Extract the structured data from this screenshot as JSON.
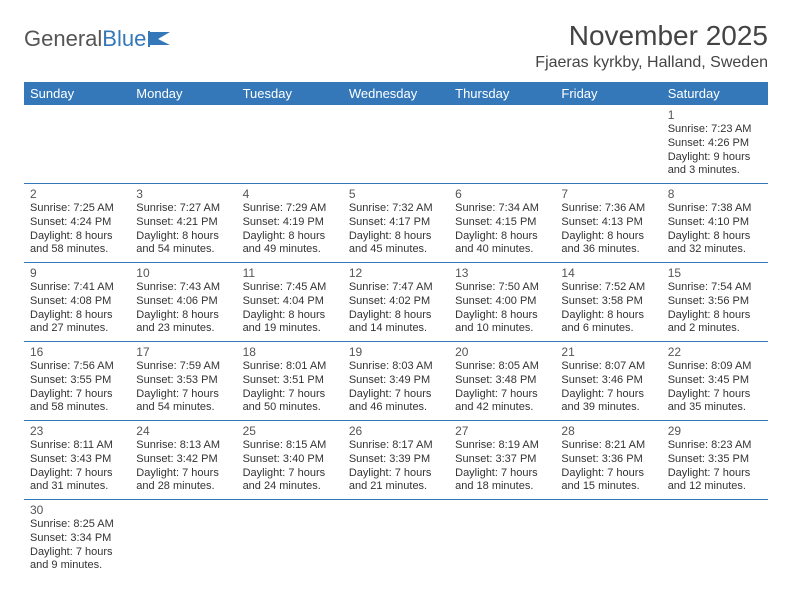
{
  "logo": {
    "text1": "General",
    "text2": "Blue"
  },
  "title": "November 2025",
  "location": "Fjaeras kyrkby, Halland, Sweden",
  "colors": {
    "header_bg": "#3478b9",
    "header_text": "#ffffff",
    "border": "#3478b9",
    "text": "#333333"
  },
  "weekdays": [
    "Sunday",
    "Monday",
    "Tuesday",
    "Wednesday",
    "Thursday",
    "Friday",
    "Saturday"
  ],
  "weeks": [
    [
      null,
      null,
      null,
      null,
      null,
      null,
      {
        "n": "1",
        "sunrise": "Sunrise: 7:23 AM",
        "sunset": "Sunset: 4:26 PM",
        "daylight": "Daylight: 9 hours and 3 minutes."
      }
    ],
    [
      {
        "n": "2",
        "sunrise": "Sunrise: 7:25 AM",
        "sunset": "Sunset: 4:24 PM",
        "daylight": "Daylight: 8 hours and 58 minutes."
      },
      {
        "n": "3",
        "sunrise": "Sunrise: 7:27 AM",
        "sunset": "Sunset: 4:21 PM",
        "daylight": "Daylight: 8 hours and 54 minutes."
      },
      {
        "n": "4",
        "sunrise": "Sunrise: 7:29 AM",
        "sunset": "Sunset: 4:19 PM",
        "daylight": "Daylight: 8 hours and 49 minutes."
      },
      {
        "n": "5",
        "sunrise": "Sunrise: 7:32 AM",
        "sunset": "Sunset: 4:17 PM",
        "daylight": "Daylight: 8 hours and 45 minutes."
      },
      {
        "n": "6",
        "sunrise": "Sunrise: 7:34 AM",
        "sunset": "Sunset: 4:15 PM",
        "daylight": "Daylight: 8 hours and 40 minutes."
      },
      {
        "n": "7",
        "sunrise": "Sunrise: 7:36 AM",
        "sunset": "Sunset: 4:13 PM",
        "daylight": "Daylight: 8 hours and 36 minutes."
      },
      {
        "n": "8",
        "sunrise": "Sunrise: 7:38 AM",
        "sunset": "Sunset: 4:10 PM",
        "daylight": "Daylight: 8 hours and 32 minutes."
      }
    ],
    [
      {
        "n": "9",
        "sunrise": "Sunrise: 7:41 AM",
        "sunset": "Sunset: 4:08 PM",
        "daylight": "Daylight: 8 hours and 27 minutes."
      },
      {
        "n": "10",
        "sunrise": "Sunrise: 7:43 AM",
        "sunset": "Sunset: 4:06 PM",
        "daylight": "Daylight: 8 hours and 23 minutes."
      },
      {
        "n": "11",
        "sunrise": "Sunrise: 7:45 AM",
        "sunset": "Sunset: 4:04 PM",
        "daylight": "Daylight: 8 hours and 19 minutes."
      },
      {
        "n": "12",
        "sunrise": "Sunrise: 7:47 AM",
        "sunset": "Sunset: 4:02 PM",
        "daylight": "Daylight: 8 hours and 14 minutes."
      },
      {
        "n": "13",
        "sunrise": "Sunrise: 7:50 AM",
        "sunset": "Sunset: 4:00 PM",
        "daylight": "Daylight: 8 hours and 10 minutes."
      },
      {
        "n": "14",
        "sunrise": "Sunrise: 7:52 AM",
        "sunset": "Sunset: 3:58 PM",
        "daylight": "Daylight: 8 hours and 6 minutes."
      },
      {
        "n": "15",
        "sunrise": "Sunrise: 7:54 AM",
        "sunset": "Sunset: 3:56 PM",
        "daylight": "Daylight: 8 hours and 2 minutes."
      }
    ],
    [
      {
        "n": "16",
        "sunrise": "Sunrise: 7:56 AM",
        "sunset": "Sunset: 3:55 PM",
        "daylight": "Daylight: 7 hours and 58 minutes."
      },
      {
        "n": "17",
        "sunrise": "Sunrise: 7:59 AM",
        "sunset": "Sunset: 3:53 PM",
        "daylight": "Daylight: 7 hours and 54 minutes."
      },
      {
        "n": "18",
        "sunrise": "Sunrise: 8:01 AM",
        "sunset": "Sunset: 3:51 PM",
        "daylight": "Daylight: 7 hours and 50 minutes."
      },
      {
        "n": "19",
        "sunrise": "Sunrise: 8:03 AM",
        "sunset": "Sunset: 3:49 PM",
        "daylight": "Daylight: 7 hours and 46 minutes."
      },
      {
        "n": "20",
        "sunrise": "Sunrise: 8:05 AM",
        "sunset": "Sunset: 3:48 PM",
        "daylight": "Daylight: 7 hours and 42 minutes."
      },
      {
        "n": "21",
        "sunrise": "Sunrise: 8:07 AM",
        "sunset": "Sunset: 3:46 PM",
        "daylight": "Daylight: 7 hours and 39 minutes."
      },
      {
        "n": "22",
        "sunrise": "Sunrise: 8:09 AM",
        "sunset": "Sunset: 3:45 PM",
        "daylight": "Daylight: 7 hours and 35 minutes."
      }
    ],
    [
      {
        "n": "23",
        "sunrise": "Sunrise: 8:11 AM",
        "sunset": "Sunset: 3:43 PM",
        "daylight": "Daylight: 7 hours and 31 minutes."
      },
      {
        "n": "24",
        "sunrise": "Sunrise: 8:13 AM",
        "sunset": "Sunset: 3:42 PM",
        "daylight": "Daylight: 7 hours and 28 minutes."
      },
      {
        "n": "25",
        "sunrise": "Sunrise: 8:15 AM",
        "sunset": "Sunset: 3:40 PM",
        "daylight": "Daylight: 7 hours and 24 minutes."
      },
      {
        "n": "26",
        "sunrise": "Sunrise: 8:17 AM",
        "sunset": "Sunset: 3:39 PM",
        "daylight": "Daylight: 7 hours and 21 minutes."
      },
      {
        "n": "27",
        "sunrise": "Sunrise: 8:19 AM",
        "sunset": "Sunset: 3:37 PM",
        "daylight": "Daylight: 7 hours and 18 minutes."
      },
      {
        "n": "28",
        "sunrise": "Sunrise: 8:21 AM",
        "sunset": "Sunset: 3:36 PM",
        "daylight": "Daylight: 7 hours and 15 minutes."
      },
      {
        "n": "29",
        "sunrise": "Sunrise: 8:23 AM",
        "sunset": "Sunset: 3:35 PM",
        "daylight": "Daylight: 7 hours and 12 minutes."
      }
    ],
    [
      {
        "n": "30",
        "sunrise": "Sunrise: 8:25 AM",
        "sunset": "Sunset: 3:34 PM",
        "daylight": "Daylight: 7 hours and 9 minutes."
      },
      null,
      null,
      null,
      null,
      null,
      null
    ]
  ]
}
